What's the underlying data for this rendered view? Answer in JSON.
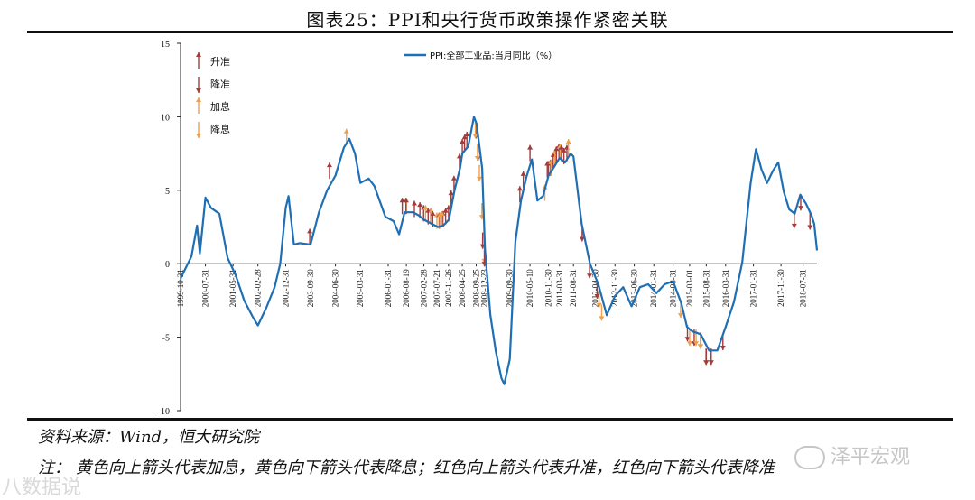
{
  "title": "图表25：PPI和央行货币政策操作紧密关联",
  "source": "资料来源：Wind，恒大研究院",
  "note": "注：  黄色向上箭头代表加息，黄色向下箭头代表降息；红色向上箭头代表升准，红色向下箭头代表降准",
  "watermarks": {
    "left": "八数据说",
    "right": "泽平宏观"
  },
  "colors": {
    "line": "#1f6fb5",
    "red_arrow": "#a33a3c",
    "yellow_arrow": "#f0a04b",
    "axis": "#222222",
    "text": "#111111"
  },
  "chart_data": {
    "type": "line",
    "series": [
      {
        "name": "PPI:全部工业品:当月同比（%）",
        "points": [
          [
            "1999-10-31",
            -1.0
          ],
          [
            "2000-02-28",
            0.5
          ],
          [
            "2000-04-30",
            2.6
          ],
          [
            "2000-05-31",
            0.7
          ],
          [
            "2000-07-31",
            4.5
          ],
          [
            "2000-09-30",
            3.8
          ],
          [
            "2000-12-31",
            3.4
          ],
          [
            "2001-03-31",
            0.4
          ],
          [
            "2001-06-30",
            -0.8
          ],
          [
            "2001-09-30",
            -2.5
          ],
          [
            "2001-12-31",
            -3.6
          ],
          [
            "2002-02-28",
            -4.2
          ],
          [
            "2002-05-31",
            -3.0
          ],
          [
            "2002-08-31",
            -1.6
          ],
          [
            "2002-10-31",
            0.0
          ],
          [
            "2002-12-31",
            3.8
          ],
          [
            "2003-01-31",
            4.6
          ],
          [
            "2003-03-31",
            1.3
          ],
          [
            "2003-05-31",
            1.4
          ],
          [
            "2003-09-30",
            1.3
          ],
          [
            "2003-12-31",
            3.5
          ],
          [
            "2004-03-31",
            5.0
          ],
          [
            "2004-06-30",
            6.0
          ],
          [
            "2004-09-30",
            7.9
          ],
          [
            "2004-11-30",
            8.5
          ],
          [
            "2005-01-31",
            7.5
          ],
          [
            "2005-03-31",
            5.5
          ],
          [
            "2005-06-30",
            5.8
          ],
          [
            "2005-08-31",
            5.3
          ],
          [
            "2005-12-31",
            3.2
          ],
          [
            "2006-03-31",
            2.9
          ],
          [
            "2006-05-31",
            2.0
          ],
          [
            "2006-07-31",
            3.5
          ],
          [
            "2006-10-31",
            3.5
          ],
          [
            "2006-12-31",
            3.3
          ],
          [
            "2007-02-28",
            3.0
          ],
          [
            "2007-04-30",
            2.8
          ],
          [
            "2007-07-31",
            2.5
          ],
          [
            "2007-09-30",
            2.6
          ],
          [
            "2007-11-30",
            3.0
          ],
          [
            "2008-01-31",
            5.0
          ],
          [
            "2008-03-31",
            6.5
          ],
          [
            "2008-04-25",
            7.5
          ],
          [
            "2008-06-30",
            8.0
          ],
          [
            "2008-08-31",
            10.0
          ],
          [
            "2008-09-30",
            9.5
          ],
          [
            "2008-11-30",
            6.5
          ],
          [
            "2008-12-31",
            1.0
          ],
          [
            "2009-02-28",
            -3.5
          ],
          [
            "2009-04-30",
            -6.0
          ],
          [
            "2009-06-30",
            -7.8
          ],
          [
            "2009-07-31",
            -8.2
          ],
          [
            "2009-09-30",
            -6.5
          ],
          [
            "2009-11-30",
            1.5
          ],
          [
            "2010-01-31",
            4.3
          ],
          [
            "2010-03-31",
            5.9
          ],
          [
            "2010-05-31",
            7.1
          ],
          [
            "2010-07-31",
            4.3
          ],
          [
            "2010-09-30",
            4.6
          ],
          [
            "2010-11-30",
            6.0
          ],
          [
            "2011-01-31",
            6.6
          ],
          [
            "2011-03-31",
            7.2
          ],
          [
            "2011-05-31",
            6.9
          ],
          [
            "2011-07-31",
            7.5
          ],
          [
            "2011-08-31",
            7.3
          ],
          [
            "2011-11-30",
            2.7
          ],
          [
            "2012-02-28",
            0.0
          ],
          [
            "2012-05-31",
            -1.4
          ],
          [
            "2012-08-31",
            -3.5
          ],
          [
            "2012-11-30",
            -2.2
          ],
          [
            "2013-02-28",
            -1.6
          ],
          [
            "2013-05-31",
            -2.9
          ],
          [
            "2013-08-31",
            -1.6
          ],
          [
            "2013-11-30",
            -1.4
          ],
          [
            "2014-02-28",
            -2.0
          ],
          [
            "2014-05-31",
            -1.4
          ],
          [
            "2014-08-31",
            -1.2
          ],
          [
            "2014-11-30",
            -2.7
          ],
          [
            "2015-01-31",
            -4.3
          ],
          [
            "2015-03-31",
            -4.6
          ],
          [
            "2015-06-30",
            -4.8
          ],
          [
            "2015-09-30",
            -5.9
          ],
          [
            "2015-12-31",
            -5.9
          ],
          [
            "2016-03-31",
            -4.3
          ],
          [
            "2016-06-30",
            -2.6
          ],
          [
            "2016-09-30",
            0.1
          ],
          [
            "2016-12-31",
            5.5
          ],
          [
            "2017-02-28",
            7.8
          ],
          [
            "2017-04-30",
            6.4
          ],
          [
            "2017-06-30",
            5.5
          ],
          [
            "2017-08-31",
            6.3
          ],
          [
            "2017-10-31",
            6.9
          ],
          [
            "2017-12-31",
            4.9
          ],
          [
            "2018-02-28",
            3.7
          ],
          [
            "2018-04-30",
            3.4
          ],
          [
            "2018-06-30",
            4.7
          ],
          [
            "2018-08-31",
            4.1
          ],
          [
            "2018-10-31",
            3.3
          ],
          [
            "2018-11-30",
            2.7
          ],
          [
            "2018-12-31",
            0.9
          ]
        ]
      }
    ],
    "x_tick_labels": [
      "1999-10-31",
      "2000-07-31",
      "2001-05-31",
      "2002-02-28",
      "2002-12-31",
      "2003-09-30",
      "2004-06-30",
      "2005-03-31",
      "2006-01-31",
      "2006-08-19",
      "2007-02-28",
      "2007-07-21",
      "2007-11-26",
      "2008-04-25",
      "2008-09-25",
      "2008-12-23",
      "2009-09-30",
      "2010-05-10",
      "2010-11-30",
      "2011-03-31",
      "2011-08-31",
      "2012-04-30",
      "2012-11-30",
      "2013-06-30",
      "2014-01-31",
      "2014-08-31",
      "2015-03-01",
      "2015-08-31",
      "2016-03-31",
      "2017-01-31",
      "2017-11-30",
      "2018-07-31"
    ],
    "y_ticks": [
      15,
      10,
      5,
      0,
      -5,
      -10
    ],
    "ylim": [
      -10,
      15
    ],
    "legend": {
      "position": "top-center",
      "label": "PPI:全部工业品:当月同比（%）"
    },
    "arrow_legend": [
      {
        "kind": "red-up",
        "label": "升准"
      },
      {
        "kind": "red-down",
        "label": "降准"
      },
      {
        "kind": "yellow-up",
        "label": "加息"
      },
      {
        "kind": "yellow-down",
        "label": "降息"
      }
    ],
    "arrows": [
      {
        "date": "2003-09-21",
        "kind": "red-up",
        "value": 1.4
      },
      {
        "date": "2004-04-25",
        "kind": "red-up",
        "value": 5.9
      },
      {
        "date": "2004-10-29",
        "kind": "yellow-up",
        "value": 8.2
      },
      {
        "date": "2006-07-05",
        "kind": "red-up",
        "value": 3.5
      },
      {
        "date": "2006-08-19",
        "kind": "yellow-up",
        "value": 3.5
      },
      {
        "date": "2006-08-15",
        "kind": "red-up",
        "value": 3.5
      },
      {
        "date": "2006-11-15",
        "kind": "red-up",
        "value": 3.3
      },
      {
        "date": "2007-01-15",
        "kind": "red-up",
        "value": 3.2
      },
      {
        "date": "2007-02-25",
        "kind": "red-up",
        "value": 3.0
      },
      {
        "date": "2007-03-18",
        "kind": "yellow-up",
        "value": 3.0
      },
      {
        "date": "2007-04-16",
        "kind": "red-up",
        "value": 2.8
      },
      {
        "date": "2007-05-15",
        "kind": "red-up",
        "value": 2.8
      },
      {
        "date": "2007-05-19",
        "kind": "yellow-up",
        "value": 2.8
      },
      {
        "date": "2007-06-05",
        "kind": "red-up",
        "value": 2.6
      },
      {
        "date": "2007-07-21",
        "kind": "yellow-up",
        "value": 2.5
      },
      {
        "date": "2007-08-15",
        "kind": "red-up",
        "value": 2.5
      },
      {
        "date": "2007-08-22",
        "kind": "yellow-up",
        "value": 2.5
      },
      {
        "date": "2007-09-25",
        "kind": "red-up",
        "value": 2.6
      },
      {
        "date": "2007-09-15",
        "kind": "yellow-up",
        "value": 2.6
      },
      {
        "date": "2007-10-25",
        "kind": "red-up",
        "value": 2.8
      },
      {
        "date": "2007-11-26",
        "kind": "red-up",
        "value": 3.0
      },
      {
        "date": "2007-12-21",
        "kind": "yellow-up",
        "value": 4.0
      },
      {
        "date": "2007-12-25",
        "kind": "red-up",
        "value": 4.0
      },
      {
        "date": "2008-01-25",
        "kind": "red-up",
        "value": 5.0
      },
      {
        "date": "2008-03-25",
        "kind": "red-up",
        "value": 6.5
      },
      {
        "date": "2008-04-25",
        "kind": "red-up",
        "value": 7.5
      },
      {
        "date": "2008-05-20",
        "kind": "red-up",
        "value": 7.8
      },
      {
        "date": "2008-06-15",
        "kind": "red-up",
        "value": 8.0
      },
      {
        "date": "2008-09-25",
        "kind": "red-down",
        "value": 9.5
      },
      {
        "date": "2008-09-16",
        "kind": "yellow-down",
        "value": 9.5
      },
      {
        "date": "2008-10-15",
        "kind": "red-down",
        "value": 8.0
      },
      {
        "date": "2008-10-09",
        "kind": "yellow-down",
        "value": 8.0
      },
      {
        "date": "2008-10-30",
        "kind": "yellow-down",
        "value": 6.6
      },
      {
        "date": "2008-11-27",
        "kind": "yellow-down",
        "value": 4.0
      },
      {
        "date": "2008-12-05",
        "kind": "red-down",
        "value": 2.0
      },
      {
        "date": "2008-12-23",
        "kind": "yellow-down",
        "value": 1.0
      },
      {
        "date": "2008-12-25",
        "kind": "red-down",
        "value": 0.8
      },
      {
        "date": "2010-01-18",
        "kind": "red-up",
        "value": 4.3
      },
      {
        "date": "2010-02-25",
        "kind": "red-up",
        "value": 5.3
      },
      {
        "date": "2010-05-10",
        "kind": "red-up",
        "value": 7.1
      },
      {
        "date": "2010-10-20",
        "kind": "yellow-up",
        "value": 4.4
      },
      {
        "date": "2010-11-16",
        "kind": "red-up",
        "value": 6.0
      },
      {
        "date": "2010-11-29",
        "kind": "red-up",
        "value": 6.0
      },
      {
        "date": "2010-12-20",
        "kind": "red-up",
        "value": 6.1
      },
      {
        "date": "2010-12-26",
        "kind": "yellow-up",
        "value": 6.1
      },
      {
        "date": "2011-01-20",
        "kind": "red-up",
        "value": 6.6
      },
      {
        "date": "2011-02-09",
        "kind": "yellow-up",
        "value": 6.8
      },
      {
        "date": "2011-02-24",
        "kind": "red-up",
        "value": 7.0
      },
      {
        "date": "2011-03-25",
        "kind": "red-up",
        "value": 7.2
      },
      {
        "date": "2011-04-06",
        "kind": "yellow-up",
        "value": 7.2
      },
      {
        "date": "2011-04-21",
        "kind": "red-up",
        "value": 7.1
      },
      {
        "date": "2011-05-18",
        "kind": "red-up",
        "value": 6.9
      },
      {
        "date": "2011-06-20",
        "kind": "red-up",
        "value": 7.1
      },
      {
        "date": "2011-07-07",
        "kind": "yellow-up",
        "value": 7.5
      },
      {
        "date": "2011-12-05",
        "kind": "red-down",
        "value": 2.5
      },
      {
        "date": "2012-02-24",
        "kind": "red-down",
        "value": 0.0
      },
      {
        "date": "2012-05-18",
        "kind": "red-down",
        "value": -1.4
      },
      {
        "date": "2012-06-08",
        "kind": "yellow-down",
        "value": -2.0
      },
      {
        "date": "2012-07-06",
        "kind": "yellow-down",
        "value": -2.9
      },
      {
        "date": "2014-11-22",
        "kind": "yellow-down",
        "value": -2.7
      },
      {
        "date": "2015-02-05",
        "kind": "red-down",
        "value": -4.3
      },
      {
        "date": "2015-03-01",
        "kind": "yellow-down",
        "value": -4.6
      },
      {
        "date": "2015-04-20",
        "kind": "red-down",
        "value": -4.6
      },
      {
        "date": "2015-05-11",
        "kind": "yellow-down",
        "value": -4.6
      },
      {
        "date": "2015-06-28",
        "kind": "red-down",
        "value": -4.8
      },
      {
        "date": "2015-06-28",
        "kind": "yellow-down",
        "value": -4.8
      },
      {
        "date": "2015-08-26",
        "kind": "yellow-down",
        "value": -5.9
      },
      {
        "date": "2015-08-31",
        "kind": "red-down",
        "value": -5.9
      },
      {
        "date": "2015-10-24",
        "kind": "yellow-down",
        "value": -5.9
      },
      {
        "date": "2015-10-24",
        "kind": "red-down",
        "value": -5.9
      },
      {
        "date": "2016-03-01",
        "kind": "red-down",
        "value": -4.9
      },
      {
        "date": "2018-04-25",
        "kind": "red-down",
        "value": 3.4
      },
      {
        "date": "2018-07-05",
        "kind": "red-down",
        "value": 4.6
      },
      {
        "date": "2018-10-15",
        "kind": "red-down",
        "value": 3.3
      }
    ]
  }
}
